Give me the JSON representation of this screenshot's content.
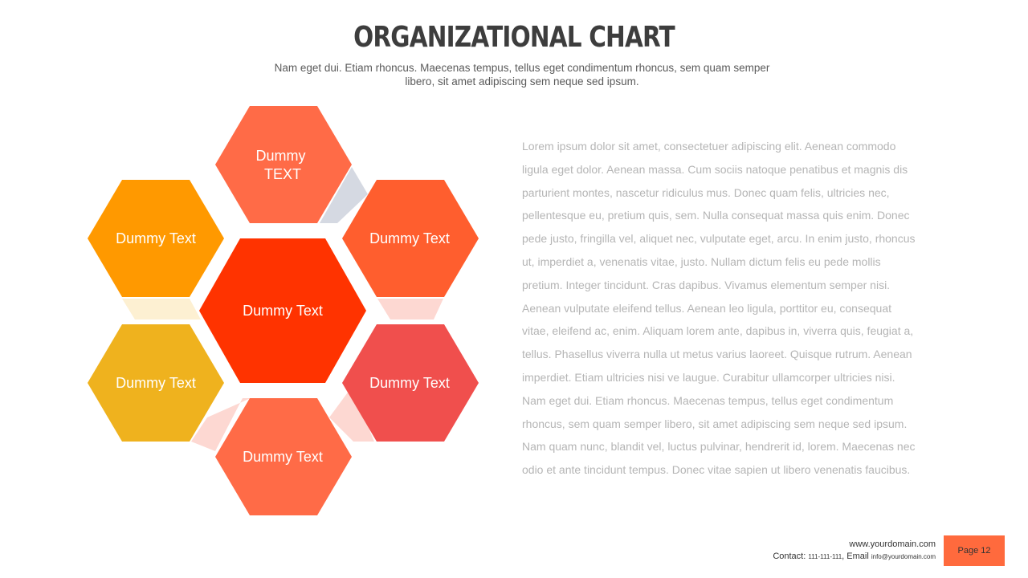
{
  "header": {
    "title": "ORGANIZATIONAL CHART",
    "subtitle_line1": "Nam eget dui. Etiam rhoncus. Maecenas tempus, tellus eget condimentum  rhoncus, sem quam semper",
    "subtitle_line2": "libero, sit amet adipiscing sem neque sed ipsum."
  },
  "diagram": {
    "nodes": [
      {
        "id": "center",
        "lines": [
          "Dummy Text"
        ],
        "color": "#ff3300"
      },
      {
        "id": "top",
        "lines": [
          "Dummy",
          "TEXT"
        ],
        "color": "#ff6b47"
      },
      {
        "id": "upper-left",
        "lines": [
          "Dummy Text"
        ],
        "color": "#ff9900"
      },
      {
        "id": "upper-right",
        "lines": [
          "Dummy Text"
        ],
        "color": "#ff5e2e"
      },
      {
        "id": "lower-left",
        "lines": [
          "Dummy Text"
        ],
        "color": "#efb21e"
      },
      {
        "id": "lower-right",
        "lines": [
          "Dummy Text"
        ],
        "color": "#f04f4d"
      },
      {
        "id": "bottom",
        "lines": [
          "Dummy Text"
        ],
        "color": "#ff6b47"
      }
    ],
    "connector_colors": {
      "top-to-upper-right": "#d5d9e2",
      "upper-left-to-lower-left": "#fdf0d2",
      "upper-right-to-lower-right": "#fdd8d2",
      "lower-left-to-bottom": "#fdd8d2",
      "bottom-to-lower-right": "#fdd8d2"
    }
  },
  "body": {
    "lines": [
      "Lorem ipsum dolor sit amet, consectetuer adipiscing elit. Aenean commodo",
      "ligula eget dolor. Aenean massa. Cum sociis natoque penatibus et magnis dis",
      "parturient  montes, nascetur ridiculus mus. Donec quam felis, ultricies nec,",
      "pellentesque eu, pretium quis, sem. Nulla consequat massa quis enim. Donec",
      "pede justo, fringilla vel, aliquet nec, vulputate eget, arcu. In enim justo, rhoncus",
      "ut, imperdiet  a, venenatis vitae, justo. Nullam dictum felis eu pede mollis",
      "pretium.  Integer tincidunt.  Cras dapibus. Vivamus elementum  semper nisi.",
      "Aenean vulputate eleifend tellus. Aenean leo ligula, porttitor eu, consequat",
      "vitae, eleifend ac, enim. Aliquam lorem ante, dapibus in, viverra quis, feugiat a,",
      "tellus. Phasellus viverra nulla ut metus varius laoreet. Quisque rutrum.  Aenean",
      "imperdiet.  Etiam ultricies nisi ve laugue. Curabitur ullamcorper ultricies nisi.",
      "Nam eget dui. Etiam rhoncus. Maecenas tempus, tellus eget condimentum",
      "rhoncus, sem quam semper libero, sit amet adipiscing sem neque sed ipsum.",
      "Nam quam nunc, blandit vel, luctus pulvinar, hendrerit id, lorem. Maecenas nec",
      "odio et ante tincidunt tempus. Donec vitae sapien ut libero venenatis faucibus."
    ]
  },
  "footer": {
    "website": "www.yourdomain.com",
    "contact_label": "Contact: ",
    "phone": "111-111-111",
    "email_label": ", Email ",
    "email": "info@yourdomain.com",
    "page_label": "Page 12",
    "page_color": "#ff6a3d"
  }
}
